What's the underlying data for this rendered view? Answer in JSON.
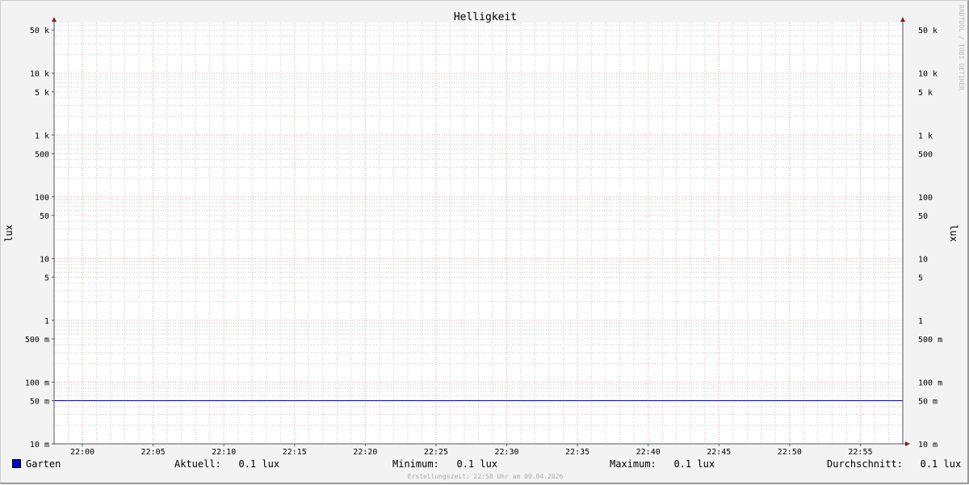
{
  "chart_data": {
    "type": "line",
    "title": "Helligkeit",
    "ylabel": "lux",
    "ylabel_right": "lux",
    "y_scale": "log",
    "ylim": [
      0.01,
      66000
    ],
    "y_ticks": [
      {
        "value": 50000,
        "label": "50 k"
      },
      {
        "value": 10000,
        "label": "10 k"
      },
      {
        "value": 5000,
        "label": "5 k"
      },
      {
        "value": 1000,
        "label": "1 k"
      },
      {
        "value": 500,
        "label": "500"
      },
      {
        "value": 100,
        "label": "100"
      },
      {
        "value": 50,
        "label": "50"
      },
      {
        "value": 10,
        "label": "10"
      },
      {
        "value": 5,
        "label": "5"
      },
      {
        "value": 1,
        "label": "1"
      },
      {
        "value": 0.5,
        "label": "500 m"
      },
      {
        "value": 0.1,
        "label": "100 m"
      },
      {
        "value": 0.05,
        "label": "50 m"
      },
      {
        "value": 0.01,
        "label": "10 m"
      }
    ],
    "xlim": [
      "21:58",
      "22:58"
    ],
    "x_ticks": [
      "22:00",
      "22:05",
      "22:10",
      "22:15",
      "22:20",
      "22:25",
      "22:30",
      "22:35",
      "22:40",
      "22:45",
      "22:50",
      "22:55"
    ],
    "grid": true,
    "series": [
      {
        "name": "Garten",
        "color": "#0000cc",
        "x": [
          "21:58",
          "22:58"
        ],
        "values": [
          0.05,
          0.05
        ]
      }
    ]
  },
  "legend": {
    "series_name": "Garten",
    "series_color": "#0000cc",
    "aktuell_label": "Aktuell:",
    "aktuell_value": "0.1 lux",
    "minimum_label": "Minimum:",
    "minimum_value": "0.1 lux",
    "maximum_label": "Maximum:",
    "maximum_value": "0.1 lux",
    "durchschnitt_label": "Durchschnitt:",
    "durchschnitt_value": "0.1 lux"
  },
  "footer": "Erstellungszeit: 22:58 Uhr am 09.04.2026",
  "watermark": "RRDTOOL / TOBI OETIKER",
  "colors": {
    "major_grid": "#e8a0a0",
    "minor_grid": "#c8c8c8",
    "axis": "#555555",
    "arrow": "#8b1a1a"
  }
}
